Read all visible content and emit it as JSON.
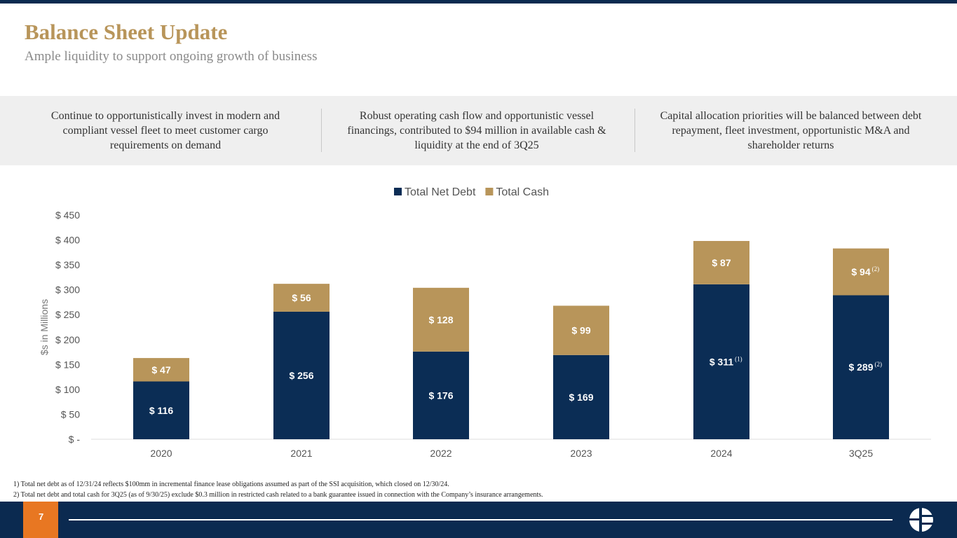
{
  "header": {
    "title": "Balance Sheet Update",
    "subtitle": "Ample liquidity to support ongoing growth of business"
  },
  "highlights": [
    "Continue to opportunistically invest in modern and compliant vessel fleet to meet customer cargo requirements on demand",
    "Robust operating cash flow and opportunistic vessel financings, contributed to $94 million in available cash & liquidity at the end of 3Q25",
    "Capital allocation priorities will be balanced between debt repayment, fleet investment, opportunistic M&A and shareholder returns"
  ],
  "chart_data": {
    "type": "bar",
    "stacked": true,
    "categories": [
      "2020",
      "2021",
      "2022",
      "2023",
      "2024",
      "3Q25"
    ],
    "series": [
      {
        "name": "Total Net Debt",
        "color": "#0b2d55",
        "values": [
          116,
          256,
          176,
          169,
          311,
          289
        ],
        "labels": [
          "$ 116",
          "$ 256",
          "$ 176",
          "$ 169",
          "$ 311",
          "$ 289"
        ],
        "notes": [
          "",
          "",
          "",
          "",
          "(1)",
          "(2)"
        ]
      },
      {
        "name": "Total Cash",
        "color": "#b8955a",
        "values": [
          47,
          56,
          128,
          99,
          87,
          94
        ],
        "labels": [
          "$ 47",
          "$ 56",
          "$ 128",
          "$ 99",
          "$ 87",
          "$ 94"
        ],
        "notes": [
          "",
          "",
          "",
          "",
          "",
          "(2)"
        ]
      }
    ],
    "ylabel": "$s in Millions",
    "ylim": [
      0,
      450
    ],
    "yticks": [
      "$ -",
      "$ 50",
      "$ 100",
      "$ 150",
      "$ 200",
      "$ 250",
      "$ 300",
      "$ 350",
      "$ 400",
      "$ 450"
    ],
    "legend": "top",
    "grid": false
  },
  "footnotes": [
    "1) Total net debt as of 12/31/24 reflects $100mm in incremental finance lease obligations assumed as part of the SSI acquisition, which closed on 12/30/24.",
    "2) Total net debt  and total cash for 3Q25 (as of 9/30/25) exclude $0.3 million in restricted cash related to a bank guarantee issued in connection with the Company’s insurance arrangements."
  ],
  "footer": {
    "page": "7"
  }
}
